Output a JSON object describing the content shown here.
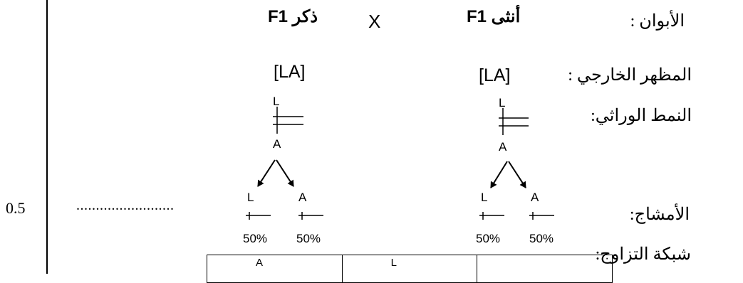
{
  "margin": {
    "score": "0.5",
    "dots": "........................."
  },
  "labels": {
    "parents": "الأبوان :",
    "phenotype": "المظهر الخارجي :",
    "genotype": "النمط الوراثي:",
    "gametes": "الأمشاج:",
    "punnett": "شبكة التزاوج:"
  },
  "cross": {
    "female": "أنثى F1",
    "symbol": "X",
    "male": "ذكر F1",
    "female_pheno": "[LA]",
    "male_pheno": "[LA]"
  },
  "female_genotype": {
    "top": "L",
    "bottom": "A"
  },
  "male_genotype": {
    "top": "L",
    "bottom": "A"
  },
  "female_gametes": [
    {
      "allele": "L",
      "pct": "50%"
    },
    {
      "allele": "A",
      "pct": "50%"
    }
  ],
  "male_gametes": [
    {
      "allele": "L",
      "pct": "50%"
    },
    {
      "allele": "A",
      "pct": "50%"
    }
  ],
  "punnett_table": {
    "header": [
      "A",
      "L",
      ""
    ]
  }
}
